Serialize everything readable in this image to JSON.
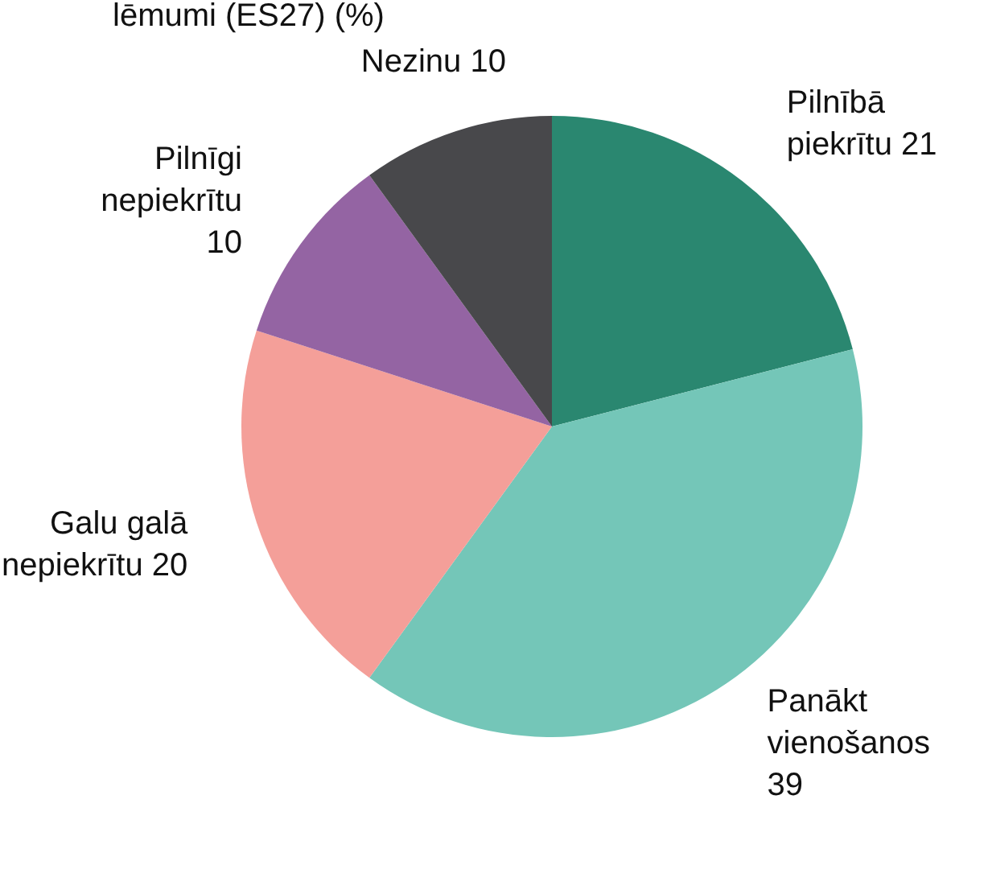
{
  "chart_data": {
    "type": "pie",
    "title": "lēmumi (ES27) (%)",
    "categories": [
      "Pilnībā piekrītu",
      "Panākt vienošanos",
      "Galu galā nepiekrītu",
      "Pilnīgi nepiekrītu",
      "Nezinu"
    ],
    "values": [
      21,
      39,
      20,
      10,
      10
    ],
    "colors": [
      "#2a8770",
      "#74c6b8",
      "#f49f99",
      "#9464a3",
      "#48484b"
    ],
    "data_labels": true
  }
}
